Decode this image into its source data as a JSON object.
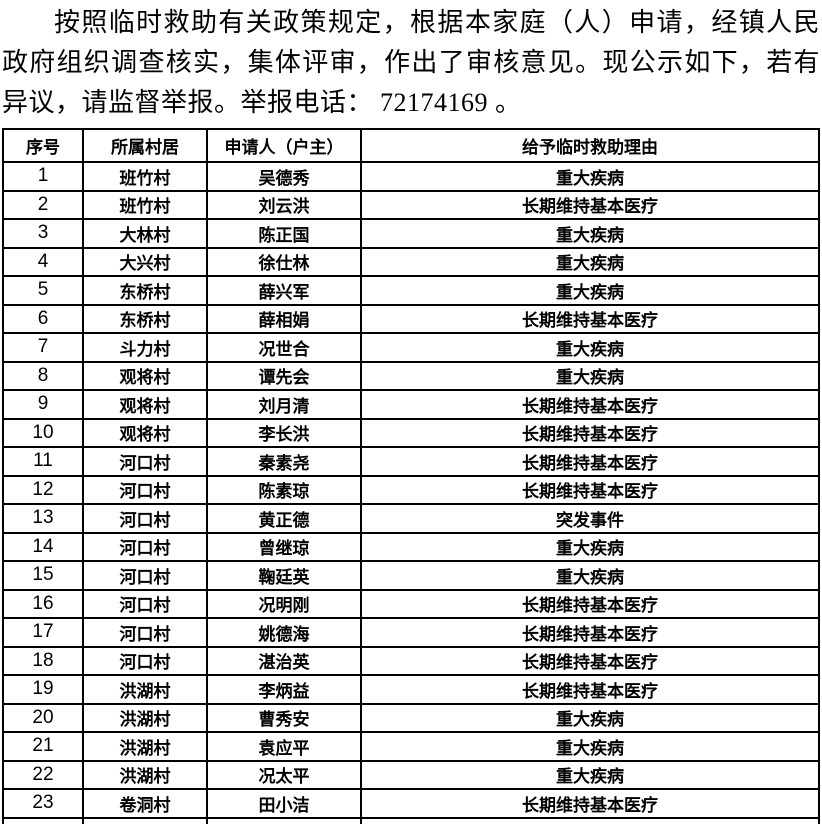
{
  "notice": {
    "text": "按照临时救助有关政策规定，根据本家庭（人）申请，经镇人民政府组织调查核实，集体评审，作出了审核意见。现公示如下，若有异议，请监督举报。举报电话： 72174169 。",
    "report_phone": "72174169"
  },
  "table": {
    "headers": [
      "序号",
      "所属村居",
      "申请人（户主）",
      "给予临时救助理由"
    ],
    "rows": [
      [
        "1",
        "班竹村",
        "吴德秀",
        "重大疾病"
      ],
      [
        "2",
        "班竹村",
        "刘云洪",
        "长期维持基本医疗"
      ],
      [
        "3",
        "大林村",
        "陈正国",
        "重大疾病"
      ],
      [
        "4",
        "大兴村",
        "徐仕林",
        "重大疾病"
      ],
      [
        "5",
        "东桥村",
        "薛兴军",
        "重大疾病"
      ],
      [
        "6",
        "东桥村",
        "薛相娟",
        "长期维持基本医疗"
      ],
      [
        "7",
        "斗力村",
        "况世合",
        "重大疾病"
      ],
      [
        "8",
        "观将村",
        "谭先会",
        "重大疾病"
      ],
      [
        "9",
        "观将村",
        "刘月清",
        "长期维持基本医疗"
      ],
      [
        "10",
        "观将村",
        "李长洪",
        "长期维持基本医疗"
      ],
      [
        "11",
        "河口村",
        "秦素尧",
        "长期维持基本医疗"
      ],
      [
        "12",
        "河口村",
        "陈素琼",
        "长期维持基本医疗"
      ],
      [
        "13",
        "河口村",
        "黄正德",
        "突发事件"
      ],
      [
        "14",
        "河口村",
        "曾继琼",
        "重大疾病"
      ],
      [
        "15",
        "河口村",
        "鞠廷英",
        "重大疾病"
      ],
      [
        "16",
        "河口村",
        "况明刚",
        "长期维持基本医疗"
      ],
      [
        "17",
        "河口村",
        "姚德海",
        "长期维持基本医疗"
      ],
      [
        "18",
        "河口村",
        "湛治英",
        "长期维持基本医疗"
      ],
      [
        "19",
        "洪湖村",
        "李炳益",
        "长期维持基本医疗"
      ],
      [
        "20",
        "洪湖村",
        "曹秀安",
        "重大疾病"
      ],
      [
        "21",
        "洪湖村",
        "袁应平",
        "重大疾病"
      ],
      [
        "22",
        "洪湖村",
        "况太平",
        "重大疾病"
      ],
      [
        "23",
        "卷洞村",
        "田小洁",
        "长期维持基本医疗"
      ]
    ]
  },
  "colors": {
    "text": "#000000",
    "background": "#ffffff",
    "border": "#000000"
  }
}
